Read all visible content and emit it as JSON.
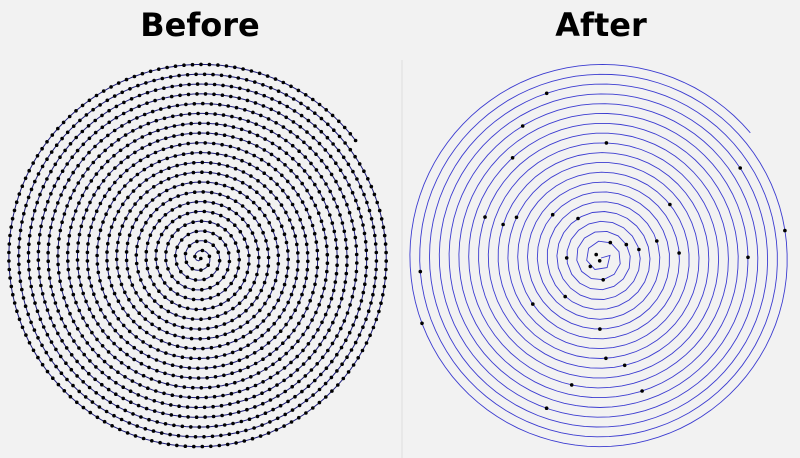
{
  "panels": [
    {
      "title": "Before"
    },
    {
      "title": "After"
    }
  ]
}
